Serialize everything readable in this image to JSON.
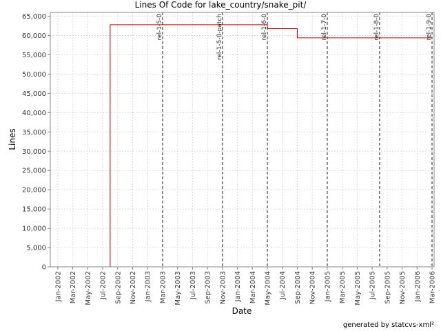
{
  "chart_data": {
    "type": "line",
    "title": "Lines Of Code for lake_country/snake_pit/",
    "x_label": "Date",
    "y_label": "Lines",
    "footer": "generated by statcvs-xml²",
    "grid": true,
    "series": [
      {
        "name": "Lines",
        "color": "#cc0000",
        "x": [
          "2002-01",
          "2002-08",
          "2002-08",
          "2004-05",
          "2004-05",
          "2004-09",
          "2004-09",
          "2006-03"
        ],
        "values": [
          0,
          0,
          62800,
          62800,
          61800,
          61800,
          59400,
          59400
        ]
      }
    ],
    "markers": [
      {
        "label": "rel-1-5-0",
        "x": "2003-03"
      },
      {
        "label": "rel-1-5-0-patch",
        "x": "2003-11"
      },
      {
        "label": "rel-1-6-0",
        "x": "2004-05"
      },
      {
        "label": "rel-1-7-0",
        "x": "2005-01"
      },
      {
        "label": "rel-1-8-0",
        "x": "2005-08"
      },
      {
        "label": "rel-1-9-0",
        "x": "2006-03"
      }
    ],
    "xlim": [
      "2001-12",
      "2006-03"
    ],
    "xticks": [
      {
        "value": "2002-01",
        "label": "Jan-2002"
      },
      {
        "value": "2002-03",
        "label": "Mar-2002"
      },
      {
        "value": "2002-05",
        "label": "May-2002"
      },
      {
        "value": "2002-07",
        "label": "Jul-2002"
      },
      {
        "value": "2002-09",
        "label": "Sep-2002"
      },
      {
        "value": "2002-11",
        "label": "Nov-2002"
      },
      {
        "value": "2003-01",
        "label": "Jan-2003"
      },
      {
        "value": "2003-03",
        "label": "Mar-2003"
      },
      {
        "value": "2003-05",
        "label": "May-2003"
      },
      {
        "value": "2003-07",
        "label": "Jul-2003"
      },
      {
        "value": "2003-09",
        "label": "Sep-2003"
      },
      {
        "value": "2003-11",
        "label": "Nov-2003"
      },
      {
        "value": "2004-01",
        "label": "Jan-2004"
      },
      {
        "value": "2004-03",
        "label": "Mar-2004"
      },
      {
        "value": "2004-05",
        "label": "May-2004"
      },
      {
        "value": "2004-07",
        "label": "Jul-2004"
      },
      {
        "value": "2004-09",
        "label": "Sep-2004"
      },
      {
        "value": "2004-11",
        "label": "Nov-2004"
      },
      {
        "value": "2005-01",
        "label": "Jan-2005"
      },
      {
        "value": "2005-03",
        "label": "Mar-2005"
      },
      {
        "value": "2005-05",
        "label": "May-2005"
      },
      {
        "value": "2005-07",
        "label": "Jul-2005"
      },
      {
        "value": "2005-09",
        "label": "Sep-2005"
      },
      {
        "value": "2005-11",
        "label": "Nov-2005"
      },
      {
        "value": "2006-01",
        "label": "Jan-2006"
      },
      {
        "value": "2006-03",
        "label": "Mar-2006"
      }
    ],
    "ylim": [
      0,
      66000
    ],
    "yticks": [
      0,
      {
        "value": 5000,
        "label": "5,000"
      },
      {
        "value": 10000,
        "label": "10,000"
      },
      {
        "value": 15000,
        "label": "15,000"
      },
      {
        "value": 20000,
        "label": "20,000"
      },
      {
        "value": 25000,
        "label": "25,000"
      },
      {
        "value": 30000,
        "label": "30,000"
      },
      {
        "value": 35000,
        "label": "35,000"
      },
      {
        "value": 40000,
        "label": "40,000"
      },
      {
        "value": 45000,
        "label": "45,000"
      },
      {
        "value": 50000,
        "label": "50,000"
      },
      {
        "value": 55000,
        "label": "55,000"
      },
      {
        "value": 60000,
        "label": "60,000"
      },
      {
        "value": 65000,
        "label": "65,000"
      }
    ]
  }
}
